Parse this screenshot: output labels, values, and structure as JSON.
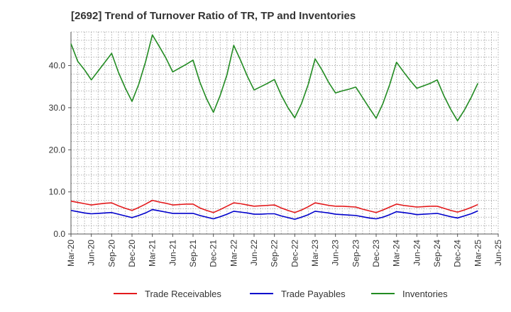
{
  "chart_data": {
    "type": "line",
    "title": "[2692]  Trend of Turnover Ratio of TR, TP and Inventories",
    "xlabel": "",
    "ylabel": "",
    "ylim": [
      0,
      48
    ],
    "yticks": [
      "0.0",
      "10.0",
      "20.0",
      "30.0",
      "40.0"
    ],
    "x_tick_labels": [
      "Mar-20",
      "Jun-20",
      "Sep-20",
      "Dec-20",
      "Mar-21",
      "Jun-21",
      "Sep-21",
      "Dec-21",
      "Mar-22",
      "Jun-22",
      "Sep-22",
      "Dec-22",
      "Mar-23",
      "Jun-23",
      "Sep-23",
      "Dec-23",
      "Mar-24",
      "Jun-24",
      "Sep-24",
      "Dec-24",
      "Mar-25",
      "Jun-25"
    ],
    "grid": true,
    "legend_position": "bottom",
    "x": [
      "2020-03",
      "2020-04",
      "2020-05",
      "2020-06",
      "2020-07",
      "2020-08",
      "2020-09",
      "2020-10",
      "2020-11",
      "2020-12",
      "2021-01",
      "2021-02",
      "2021-03",
      "2021-04",
      "2021-05",
      "2021-06",
      "2021-07",
      "2021-08",
      "2021-09",
      "2021-10",
      "2021-11",
      "2021-12",
      "2022-01",
      "2022-02",
      "2022-03",
      "2022-04",
      "2022-05",
      "2022-06",
      "2022-07",
      "2022-08",
      "2022-09",
      "2022-10",
      "2022-11",
      "2022-12",
      "2023-01",
      "2023-02",
      "2023-03",
      "2023-04",
      "2023-05",
      "2023-06",
      "2023-07",
      "2023-08",
      "2023-09",
      "2023-10",
      "2023-11",
      "2023-12",
      "2024-01",
      "2024-02",
      "2024-03",
      "2024-04",
      "2024-05",
      "2024-06",
      "2024-07",
      "2024-08",
      "2024-09",
      "2024-10",
      "2024-11",
      "2024-12",
      "2025-01",
      "2025-02",
      "2025-03"
    ],
    "series": [
      {
        "name": "Trade Receivables",
        "color": "#e31a1c",
        "values": [
          7.8,
          7.5,
          7.2,
          6.9,
          7.1,
          7.3,
          7.4,
          6.7,
          6.1,
          5.6,
          6.3,
          7.1,
          8.0,
          7.6,
          7.3,
          6.9,
          7.0,
          7.1,
          7.1,
          6.2,
          5.6,
          5.1,
          5.8,
          6.6,
          7.4,
          7.2,
          6.9,
          6.6,
          6.7,
          6.8,
          6.9,
          6.2,
          5.6,
          5.1,
          5.7,
          6.5,
          7.4,
          7.1,
          6.8,
          6.6,
          6.6,
          6.5,
          6.4,
          5.9,
          5.5,
          5.1,
          5.7,
          6.4,
          7.1,
          6.8,
          6.6,
          6.4,
          6.5,
          6.6,
          6.6,
          6.1,
          5.6,
          5.2,
          5.7,
          6.3,
          7.0
        ]
      },
      {
        "name": "Trade Payables",
        "color": "#0000cc",
        "values": [
          5.6,
          5.3,
          5.0,
          4.8,
          4.9,
          5.0,
          5.1,
          4.7,
          4.3,
          3.9,
          4.4,
          5.0,
          5.8,
          5.5,
          5.2,
          4.9,
          4.9,
          4.9,
          4.9,
          4.4,
          4.0,
          3.6,
          4.1,
          4.7,
          5.4,
          5.2,
          5.0,
          4.7,
          4.7,
          4.8,
          4.8,
          4.3,
          3.9,
          3.5,
          4.0,
          4.6,
          5.4,
          5.2,
          5.0,
          4.7,
          4.6,
          4.5,
          4.4,
          4.1,
          3.8,
          3.6,
          4.0,
          4.6,
          5.3,
          5.1,
          4.9,
          4.6,
          4.7,
          4.8,
          4.9,
          4.5,
          4.1,
          3.8,
          4.3,
          4.8,
          5.5
        ]
      },
      {
        "name": "Inventories",
        "color": "#228b22",
        "values": [
          45.2,
          41.0,
          39.0,
          36.6,
          38.7,
          40.8,
          42.9,
          38.4,
          34.7,
          31.5,
          35.6,
          40.9,
          47.3,
          44.6,
          41.8,
          38.5,
          39.4,
          40.3,
          41.3,
          36.1,
          32.1,
          28.9,
          32.9,
          37.8,
          44.8,
          41.3,
          37.5,
          34.2,
          35.0,
          35.8,
          36.7,
          33.0,
          30.0,
          27.6,
          31.0,
          35.6,
          41.6,
          39.0,
          36.0,
          33.5,
          34.0,
          34.4,
          34.9,
          32.4,
          29.9,
          27.5,
          31.0,
          35.5,
          40.8,
          38.6,
          36.5,
          34.6,
          35.2,
          35.8,
          36.6,
          32.8,
          29.6,
          26.9,
          29.4,
          32.4,
          35.8
        ]
      }
    ]
  }
}
